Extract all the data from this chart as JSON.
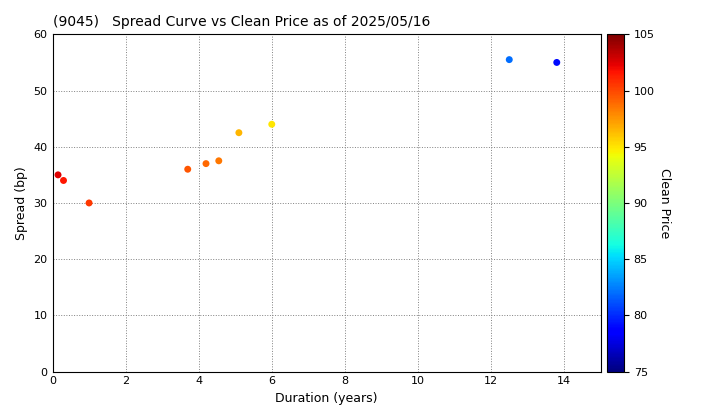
{
  "title": "(9045)   Spread Curve vs Clean Price as of 2025/05/16",
  "xlabel": "Duration (years)",
  "ylabel": "Spread (bp)",
  "colorbar_label": "Clean Price",
  "xlim": [
    0,
    15
  ],
  "ylim": [
    0,
    60
  ],
  "xticks": [
    0,
    2,
    4,
    6,
    8,
    10,
    12,
    14
  ],
  "yticks": [
    0,
    10,
    20,
    30,
    40,
    50,
    60
  ],
  "colorbar_vmin": 75,
  "colorbar_vmax": 105,
  "colorbar_ticks": [
    75,
    80,
    85,
    90,
    95,
    100,
    105
  ],
  "points": [
    {
      "duration": 0.15,
      "spread": 35,
      "price": 102.5
    },
    {
      "duration": 0.3,
      "spread": 34,
      "price": 101.5
    },
    {
      "duration": 1.0,
      "spread": 30,
      "price": 100.5
    },
    {
      "duration": 3.7,
      "spread": 36,
      "price": 99.5
    },
    {
      "duration": 4.2,
      "spread": 37,
      "price": 99.0
    },
    {
      "duration": 4.55,
      "spread": 37.5,
      "price": 98.5
    },
    {
      "duration": 5.1,
      "spread": 42.5,
      "price": 96.5
    },
    {
      "duration": 6.0,
      "spread": 44,
      "price": 95.0
    },
    {
      "duration": 12.5,
      "spread": 55.5,
      "price": 82.0
    },
    {
      "duration": 13.8,
      "spread": 55,
      "price": 79.0
    }
  ],
  "background_color": "#ffffff",
  "marker_size": 25,
  "figsize": [
    7.2,
    4.2
  ],
  "dpi": 100
}
